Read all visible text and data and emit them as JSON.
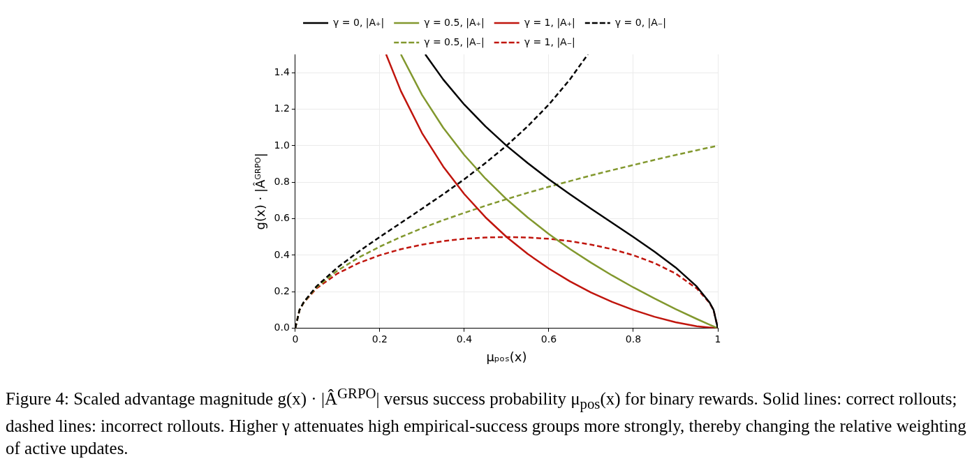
{
  "chart_data": {
    "type": "line",
    "xlabel": "μₚₒₛ(x)",
    "ylabel": "g(x) · |Âᴳᴿᴾᴼ|",
    "xlim": [
      0,
      1
    ],
    "ylim": [
      0,
      1.5
    ],
    "xticks": [
      0,
      0.2,
      0.4,
      0.6,
      0.8,
      1
    ],
    "yticks": [
      {
        "value": 0,
        "label": "0.0"
      },
      {
        "value": 0.2,
        "label": "0.2"
      },
      {
        "value": 0.4,
        "label": "0.4"
      },
      {
        "value": 0.6,
        "label": "0.6"
      },
      {
        "value": 0.8,
        "label": "0.8"
      },
      {
        "value": 1,
        "label": "1.0"
      },
      {
        "value": 1.2,
        "label": "1.2"
      },
      {
        "value": 1.4,
        "label": "1.4"
      }
    ],
    "grid": true,
    "legend": "top",
    "marker": "none",
    "series": [
      {
        "name": "γ = 0, |A₊|",
        "color": "#000000",
        "line_style": "solid",
        "x": [
          0.3077,
          0.35,
          0.4,
          0.45,
          0.5,
          0.55,
          0.6,
          0.65,
          0.7,
          0.75,
          0.8,
          0.85,
          0.9,
          0.95,
          0.98,
          0.99,
          1
        ],
        "values": [
          1.5,
          1.363,
          1.225,
          1.106,
          1,
          0.905,
          0.816,
          0.734,
          0.655,
          0.577,
          0.5,
          0.42,
          0.333,
          0.229,
          0.143,
          0.1,
          0
        ]
      },
      {
        "name": "γ = 0.5, |A₊|",
        "color": "#82982e",
        "line_style": "solid",
        "x": [
          0.25,
          0.3,
          0.35,
          0.4,
          0.45,
          0.5,
          0.55,
          0.6,
          0.65,
          0.7,
          0.75,
          0.8,
          0.85,
          0.9,
          0.95,
          0.98,
          1
        ],
        "values": [
          1.5,
          1.278,
          1.099,
          0.949,
          0.82,
          0.707,
          0.607,
          0.516,
          0.434,
          0.359,
          0.289,
          0.224,
          0.163,
          0.105,
          0.051,
          0.02,
          0
        ]
      },
      {
        "name": "γ = 1, |A₊|",
        "color": "#c0150d",
        "line_style": "solid",
        "x": [
          0.215,
          0.25,
          0.3,
          0.35,
          0.4,
          0.45,
          0.5,
          0.55,
          0.6,
          0.65,
          0.7,
          0.75,
          0.8,
          0.85,
          0.9,
          0.95,
          1
        ],
        "values": [
          1.5,
          1.299,
          1.069,
          0.886,
          0.735,
          0.608,
          0.5,
          0.407,
          0.327,
          0.257,
          0.196,
          0.144,
          0.1,
          0.063,
          0.033,
          0.011,
          0
        ]
      },
      {
        "name": "γ = 0, |A₋|",
        "color": "#000000",
        "line_style": "dashed",
        "x": [
          0,
          0.01,
          0.02,
          0.05,
          0.1,
          0.15,
          0.2,
          0.25,
          0.3,
          0.35,
          0.4,
          0.45,
          0.5,
          0.55,
          0.6,
          0.65,
          0.6923
        ],
        "values": [
          0,
          0.1,
          0.143,
          0.229,
          0.333,
          0.42,
          0.5,
          0.577,
          0.655,
          0.734,
          0.816,
          0.905,
          1,
          1.106,
          1.225,
          1.363,
          1.5
        ]
      },
      {
        "name": "γ = 0.5, |A₋|",
        "color": "#82982e",
        "line_style": "dashed",
        "x": [
          0,
          0.01,
          0.02,
          0.05,
          0.1,
          0.15,
          0.2,
          0.25,
          0.3,
          0.35,
          0.4,
          0.45,
          0.5,
          0.55,
          0.6,
          0.65,
          0.7,
          0.75,
          0.8,
          0.85,
          0.9,
          0.95,
          1
        ],
        "values": [
          0,
          0.1,
          0.141,
          0.224,
          0.316,
          0.387,
          0.447,
          0.5,
          0.548,
          0.592,
          0.632,
          0.671,
          0.707,
          0.742,
          0.775,
          0.806,
          0.837,
          0.866,
          0.894,
          0.922,
          0.949,
          0.975,
          1
        ]
      },
      {
        "name": "γ = 1, |A₋|",
        "color": "#c0150d",
        "line_style": "dashed",
        "x": [
          0,
          0.01,
          0.02,
          0.05,
          0.1,
          0.15,
          0.2,
          0.25,
          0.3,
          0.35,
          0.4,
          0.45,
          0.5,
          0.55,
          0.6,
          0.65,
          0.7,
          0.75,
          0.8,
          0.85,
          0.9,
          0.95,
          0.98,
          0.99,
          1
        ],
        "values": [
          0,
          0.0995,
          0.14,
          0.218,
          0.3,
          0.357,
          0.4,
          0.433,
          0.458,
          0.477,
          0.49,
          0.497,
          0.5,
          0.497,
          0.49,
          0.477,
          0.458,
          0.433,
          0.4,
          0.357,
          0.3,
          0.218,
          0.14,
          0.0995,
          0
        ]
      }
    ],
    "annotations": [
      "Figure 4: Scaled advantage magnitude g(x) · |Â$^{GRPO}$| versus success probability μ$_{pos}$(x) for binary rewards. Solid lines: correct rollouts; dashed lines: incorrect rollouts. Higher γ attenuates high empirical-success groups more strongly, thereby changing the relative weighting of active updates."
    ]
  }
}
